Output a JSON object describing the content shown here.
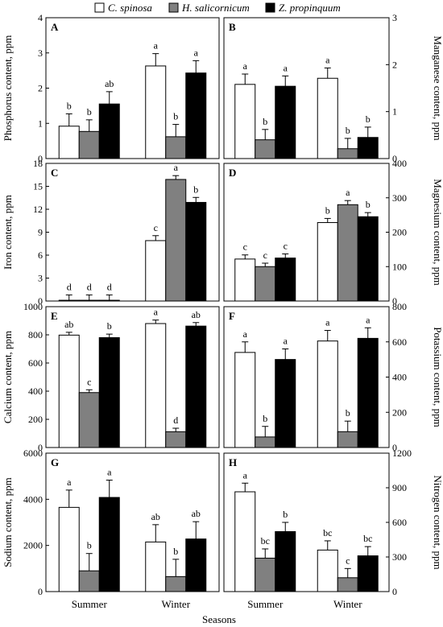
{
  "legend": [
    {
      "name": "C. spinosa",
      "color": "#ffffff"
    },
    {
      "name": "H. salicornicum",
      "color": "#808080"
    },
    {
      "name": "Z. propinquum",
      "color": "#000000"
    }
  ],
  "x_axis_title": "Seasons",
  "categories": [
    "Summer",
    "Winter"
  ],
  "chart_data": [
    {
      "type": "bar",
      "panel": "A",
      "ylabel": "Phosphorus content, ppm",
      "ylim": [
        0,
        4
      ],
      "yticks": [
        0,
        1,
        2,
        3,
        4
      ],
      "series": [
        {
          "name": "C. spinosa",
          "values": [
            0.92,
            2.63
          ],
          "errors": [
            0.35,
            0.35
          ],
          "letters": [
            "b",
            "a"
          ]
        },
        {
          "name": "H. salicornicum",
          "values": [
            0.77,
            0.62
          ],
          "errors": [
            0.33,
            0.35
          ],
          "letters": [
            "b",
            "b"
          ]
        },
        {
          "name": "Z. propinquum",
          "values": [
            1.55,
            2.43
          ],
          "errors": [
            0.35,
            0.35
          ],
          "letters": [
            "ab",
            "a"
          ]
        }
      ]
    },
    {
      "type": "bar",
      "panel": "B",
      "ylabel": "Manganese content, ppm",
      "ylim": [
        0,
        3
      ],
      "yticks": [
        0,
        1,
        2,
        3
      ],
      "series": [
        {
          "name": "C. spinosa",
          "values": [
            1.58,
            1.71
          ],
          "errors": [
            0.22,
            0.22
          ],
          "letters": [
            "a",
            "a"
          ]
        },
        {
          "name": "H. salicornicum",
          "values": [
            0.4,
            0.21
          ],
          "errors": [
            0.22,
            0.22
          ],
          "letters": [
            "b",
            "b"
          ]
        },
        {
          "name": "Z. propinquum",
          "values": [
            1.54,
            0.45
          ],
          "errors": [
            0.22,
            0.22
          ],
          "letters": [
            "a",
            "b"
          ]
        }
      ]
    },
    {
      "type": "bar",
      "panel": "C",
      "ylabel": "Iron content, ppm",
      "ylim": [
        0,
        18
      ],
      "yticks": [
        0,
        3,
        6,
        9,
        12,
        15,
        18
      ],
      "series": [
        {
          "name": "C. spinosa",
          "values": [
            0.1,
            7.9
          ],
          "errors": [
            0.7,
            0.65
          ],
          "letters": [
            "d",
            "c"
          ]
        },
        {
          "name": "H. salicornicum",
          "values": [
            0.1,
            15.9
          ],
          "errors": [
            0.7,
            0.5
          ],
          "letters": [
            "d",
            "a"
          ]
        },
        {
          "name": "Z. propinquum",
          "values": [
            0.1,
            12.9
          ],
          "errors": [
            0.7,
            0.65
          ],
          "letters": [
            "d",
            "b"
          ]
        }
      ]
    },
    {
      "type": "bar",
      "panel": "D",
      "ylabel": "Magnesium content, ppm",
      "ylim": [
        0,
        400
      ],
      "yticks": [
        0,
        100,
        200,
        300,
        400
      ],
      "series": [
        {
          "name": "C. spinosa",
          "values": [
            122,
            228
          ],
          "errors": [
            12,
            12
          ],
          "letters": [
            "c",
            "b"
          ]
        },
        {
          "name": "H. salicornicum",
          "values": [
            100,
            280
          ],
          "errors": [
            10,
            12
          ],
          "letters": [
            "c",
            "a"
          ]
        },
        {
          "name": "Z. propinquum",
          "values": [
            125,
            245
          ],
          "errors": [
            12,
            12
          ],
          "letters": [
            "c",
            "b"
          ]
        }
      ]
    },
    {
      "type": "bar",
      "panel": "E",
      "ylabel": "Calcium content, ppm",
      "ylim": [
        0,
        1000
      ],
      "yticks": [
        0,
        200,
        400,
        600,
        800,
        1000
      ],
      "series": [
        {
          "name": "C. spinosa",
          "values": [
            798,
            880
          ],
          "errors": [
            20,
            25
          ],
          "letters": [
            "ab",
            "a"
          ]
        },
        {
          "name": "H. salicornicum",
          "values": [
            390,
            112
          ],
          "errors": [
            20,
            25
          ],
          "letters": [
            "c",
            "d"
          ]
        },
        {
          "name": "Z. propinquum",
          "values": [
            780,
            862
          ],
          "errors": [
            25,
            25
          ],
          "letters": [
            "b",
            "ab"
          ]
        }
      ]
    },
    {
      "type": "bar",
      "panel": "F",
      "ylabel": "Potassium content, ppm",
      "ylim": [
        0,
        800
      ],
      "yticks": [
        0,
        200,
        400,
        600,
        800
      ],
      "series": [
        {
          "name": "C. spinosa",
          "values": [
            540,
            605
          ],
          "errors": [
            60,
            60
          ],
          "letters": [
            "a",
            "a"
          ]
        },
        {
          "name": "H. salicornicum",
          "values": [
            60,
            90
          ],
          "errors": [
            60,
            60
          ],
          "letters": [
            "b",
            "b"
          ]
        },
        {
          "name": "Z. propinquum",
          "values": [
            500,
            620
          ],
          "errors": [
            60,
            60
          ],
          "letters": [
            "a",
            "a"
          ]
        }
      ]
    },
    {
      "type": "bar",
      "panel": "G",
      "ylabel": "Sodium content, ppm",
      "ylim": [
        0,
        6000
      ],
      "yticks": [
        0,
        2000,
        4000,
        6000
      ],
      "series": [
        {
          "name": "C. spinosa",
          "values": [
            3650,
            2150
          ],
          "errors": [
            750,
            750
          ],
          "letters": [
            "a",
            "ab"
          ]
        },
        {
          "name": "H. salicornicum",
          "values": [
            900,
            650
          ],
          "errors": [
            750,
            750
          ],
          "letters": [
            "b",
            "b"
          ]
        },
        {
          "name": "Z. propinquum",
          "values": [
            4080,
            2280
          ],
          "errors": [
            750,
            750
          ],
          "letters": [
            "a",
            "ab"
          ]
        }
      ]
    },
    {
      "type": "bar",
      "panel": "H",
      "ylabel": "Nitrogen content, ppm",
      "ylim": [
        0,
        1200
      ],
      "yticks": [
        0,
        300,
        600,
        900,
        1200
      ],
      "series": [
        {
          "name": "C. spinosa",
          "values": [
            865,
            360
          ],
          "errors": [
            75,
            80
          ],
          "letters": [
            "a",
            "bc"
          ]
        },
        {
          "name": "H. salicornicum",
          "values": [
            290,
            120
          ],
          "errors": [
            80,
            80
          ],
          "letters": [
            "bc",
            "c"
          ]
        },
        {
          "name": "Z. propinquum",
          "values": [
            520,
            310
          ],
          "errors": [
            80,
            80
          ],
          "letters": [
            "b",
            "bc"
          ]
        }
      ]
    }
  ]
}
